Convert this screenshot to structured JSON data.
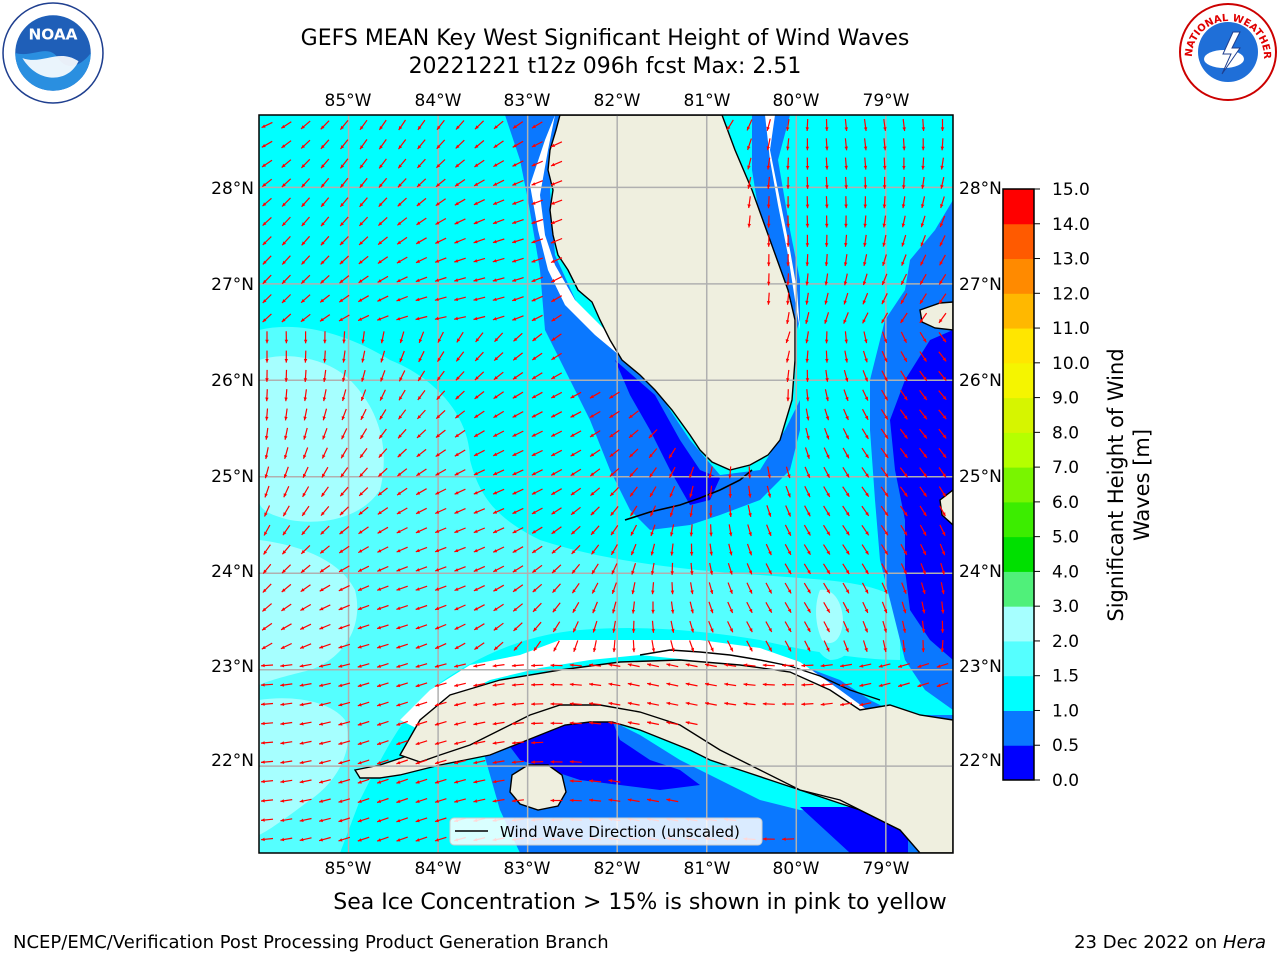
{
  "header": {
    "title_line1": "GEFS MEAN Key West Significant Height of Wind Waves",
    "title_line2": "20221221 t12z 096h fcst   Max: 2.51"
  },
  "colors": {
    "land": "#efefdf",
    "coast": "#000000",
    "arrow": "#ff0000",
    "grid": "#b0b0b0"
  },
  "chart_data": {
    "type": "heatmap",
    "lon_ticks": [
      "85°W",
      "84°W",
      "83°W",
      "82°W",
      "81°W",
      "80°W",
      "79°W"
    ],
    "lat_ticks": [
      "28°N",
      "27°N",
      "26°N",
      "25°N",
      "24°N",
      "23°N",
      "22°N"
    ],
    "lon_range": [
      -86.0,
      -78.25
    ],
    "lat_range": [
      21.1,
      28.75
    ],
    "colorbar": {
      "label": "Significant Height of Wind Waves [m]",
      "label_line1": "Significant Height of Wind",
      "label_line2": "Waves [m]",
      "levels": [
        "0.0",
        "0.5",
        "1.0",
        "1.5",
        "2.0",
        "3.0",
        "4.0",
        "5.0",
        "6.0",
        "7.0",
        "8.0",
        "9.0",
        "10.0",
        "11.0",
        "12.0",
        "13.0",
        "14.0",
        "15.0"
      ],
      "colors": [
        "#0000ff",
        "#0a78ff",
        "#00ffff",
        "#55ffff",
        "#a6ffff",
        "#50f07a",
        "#00e000",
        "#3ced00",
        "#79f500",
        "#b5ff00",
        "#d6f500",
        "#f5f500",
        "#ffe600",
        "#ffb800",
        "#ff8a00",
        "#ff5a00",
        "#ff0000"
      ]
    },
    "max_value": 2.51
  },
  "legend": {
    "label": "Wind Wave Direction (unscaled)"
  },
  "note": "Sea Ice Concentration > 15% is shown in pink to yellow",
  "footer": {
    "left": "NCEP/EMC/Verification Post Processing Product Generation Branch",
    "right_text": "23 Dec 2022 on ",
    "right_italic": "Hera"
  },
  "logos": {
    "noaa_text": "NOAA",
    "nws_text": "NATIONAL WEATHER SERVICE"
  }
}
